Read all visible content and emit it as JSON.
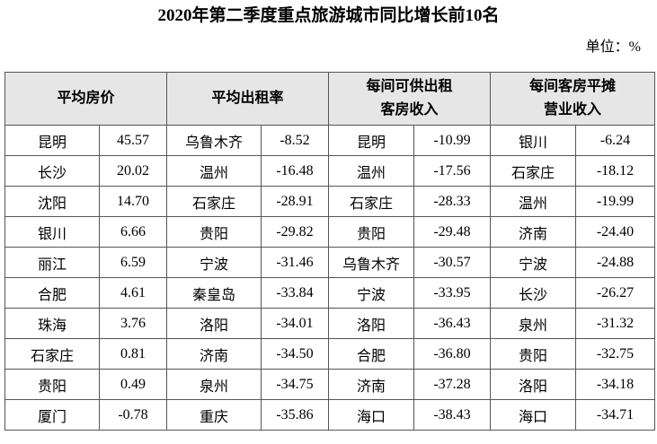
{
  "title": "2020年第二季度重点旅游城市同比增长前10名",
  "unit": "单位：%",
  "table": {
    "headers": [
      [
        "平均房价"
      ],
      [
        "平均出租率"
      ],
      [
        "每间可供出租",
        "客房收入"
      ],
      [
        "每间客房平摊",
        "营业收入"
      ]
    ],
    "rows": [
      [
        "昆明",
        "45.57",
        "乌鲁木齐",
        "-8.52",
        "昆明",
        "-10.99",
        "银川",
        "-6.24"
      ],
      [
        "长沙",
        "20.02",
        "温州",
        "-16.48",
        "温州",
        "-17.56",
        "石家庄",
        "-18.12"
      ],
      [
        "沈阳",
        "14.70",
        "石家庄",
        "-28.91",
        "石家庄",
        "-28.33",
        "温州",
        "-19.99"
      ],
      [
        "银川",
        "6.66",
        "贵阳",
        "-29.82",
        "贵阳",
        "-29.48",
        "济南",
        "-24.40"
      ],
      [
        "丽江",
        "6.59",
        "宁波",
        "-31.46",
        "乌鲁木齐",
        "-30.57",
        "宁波",
        "-24.88"
      ],
      [
        "合肥",
        "4.61",
        "秦皇岛",
        "-33.84",
        "宁波",
        "-33.95",
        "长沙",
        "-26.27"
      ],
      [
        "珠海",
        "3.76",
        "洛阳",
        "-34.01",
        "洛阳",
        "-36.43",
        "泉州",
        "-31.32"
      ],
      [
        "石家庄",
        "0.81",
        "济南",
        "-34.50",
        "合肥",
        "-36.80",
        "贵阳",
        "-32.75"
      ],
      [
        "贵阳",
        "0.49",
        "泉州",
        "-34.75",
        "济南",
        "-37.28",
        "洛阳",
        "-34.18"
      ],
      [
        "厦门",
        "-0.78",
        "重庆",
        "-35.86",
        "海口",
        "-38.43",
        "海口",
        "-34.71"
      ]
    ]
  }
}
